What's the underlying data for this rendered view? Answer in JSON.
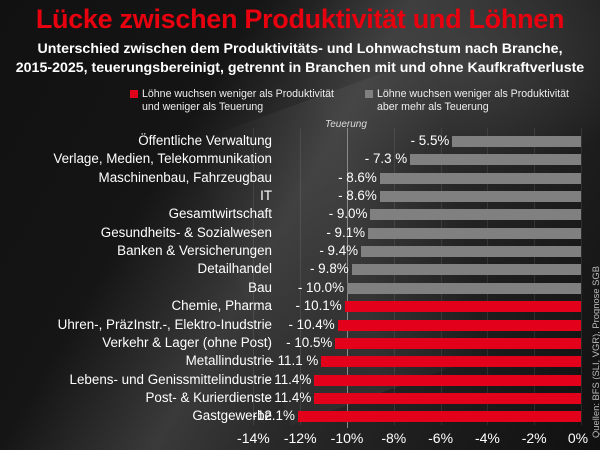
{
  "title": "Lücke zwischen Produktivität und Löhnen",
  "subtitle_line1": "Unterschied zwischen dem Produktivitäts- und Lohnwachstum nach Branche,",
  "subtitle_line2": "2015-2025, teuerungsbereinigt, getrennt in Branchen mit und ohne Kaufkraftverluste",
  "legend": [
    {
      "line1": "Löhne wuchsen weniger als Produktivität",
      "line2": "und weniger als Teuerung",
      "color": "#e2001a"
    },
    {
      "line1": "Löhne wuchsen weniger als Produktivität",
      "line2": "aber mehr als Teuerung",
      "color": "#808080"
    }
  ],
  "reference_label": "Teuerung",
  "source": "Quellen: BFS (SLI, VGR), Prognose SGB",
  "chart_data": {
    "type": "bar",
    "orientation": "horizontal",
    "title": "Lücke zwischen Produktivität und Löhnen",
    "subtitle": "Unterschied zwischen dem Produktivitäts- und Lohnwachstum nach Branche, 2015-2025, teuerungsbereinigt, getrennt in Branchen mit und ohne Kaufkraftverluste",
    "xlabel": "",
    "ylabel": "",
    "xlim": [
      -14,
      0
    ],
    "x_ticks": [
      -14,
      -12,
      -10,
      -8,
      -6,
      -4,
      -2,
      0
    ],
    "x_tick_labels": [
      "-14%",
      "-12%",
      "-10%",
      "-8%",
      "-6%",
      "-4%",
      "-2%",
      "0%"
    ],
    "reference_line": {
      "value": -10,
      "label": "Teuerung"
    },
    "grid": true,
    "legend_position": "top",
    "categories": [
      "Öffentliche Verwaltung",
      "Verlage, Medien, Telekommunikation",
      "Maschinenbau, Fahrzeugbau",
      "IT",
      "Gesamtwirtschaft",
      "Gesundheits- & Sozialwesen",
      "Banken & Versicherungen",
      "Detailhandel",
      "Bau",
      "Chemie, Pharma",
      "Uhren-, PräzInstr.-, Elektro-Inudstrie",
      "Verkehr & Lager (ohne Post)",
      "Metallindustrie",
      "Lebens- und Genissmittelindustrie",
      "Post- & Kurierdienste",
      "Gastgewerbe"
    ],
    "values": [
      -5.5,
      -7.3,
      -8.6,
      -8.6,
      -9.0,
      -9.1,
      -9.4,
      -9.8,
      -10.0,
      -10.1,
      -10.4,
      -10.5,
      -11.1,
      -11.4,
      -11.4,
      -12.1
    ],
    "value_labels": [
      "- 5.5%",
      "- 7.3 %",
      "- 8.6%",
      "- 8.6%",
      "- 9.0%",
      "- 9.1%",
      "- 9.4%",
      "- 9.8%",
      "- 10.0%",
      "- 10.1%",
      "- 10.4%",
      "- 10.5%",
      "- 11.1 %",
      "- 11.4%",
      "- 11.4%",
      "-12.1%"
    ],
    "groups": [
      "grey",
      "grey",
      "grey",
      "grey",
      "grey",
      "grey",
      "grey",
      "grey",
      "grey",
      "red",
      "red",
      "red",
      "red",
      "red",
      "red",
      "red"
    ],
    "series": [
      {
        "name": "Löhne wuchsen weniger als Produktivität und weniger als Teuerung",
        "color": "#e2001a"
      },
      {
        "name": "Löhne wuchsen weniger als Produktivität aber mehr als Teuerung",
        "color": "#808080"
      }
    ],
    "group_colors": {
      "red": "#e2001a",
      "grey": "#808080"
    }
  }
}
